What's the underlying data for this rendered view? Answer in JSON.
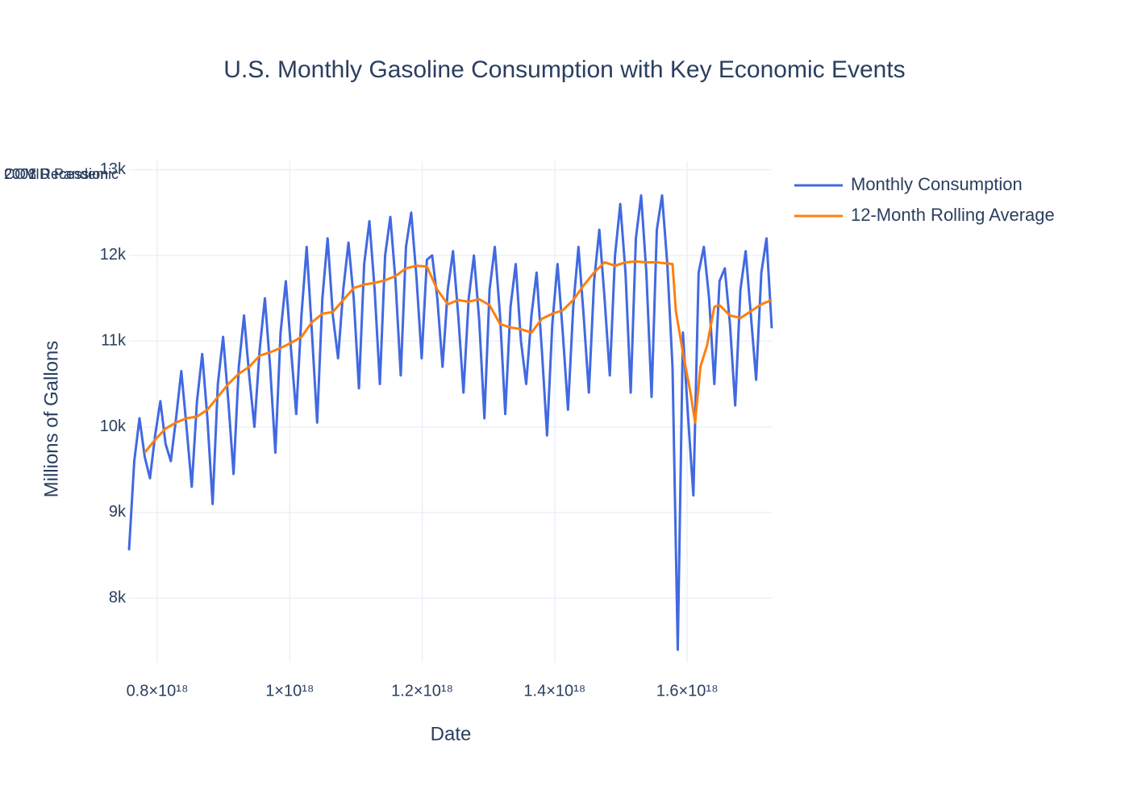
{
  "chart_data": {
    "type": "line",
    "title": "U.S. Monthly Gasoline Consumption with Key Economic Events",
    "x_label": "Date",
    "y_label": "Millions of Gallons",
    "annotations": [
      "2001 Recession",
      "2008 Recession",
      "COVID Pandemic"
    ],
    "xlim": [
      7.574e+17,
      1.7277e+18
    ],
    "ylim": [
      7250,
      13100
    ],
    "xticks": [
      {
        "value": 8e+17,
        "label": "0.8×10¹⁸"
      },
      {
        "value": 1e+18,
        "label": "1×10¹⁸"
      },
      {
        "value": 1.2e+18,
        "label": "1.2×10¹⁸"
      },
      {
        "value": 1.4e+18,
        "label": "1.4×10¹⁸"
      },
      {
        "value": 1.6e+18,
        "label": "1.6×10¹⁸"
      }
    ],
    "yticks": [
      {
        "value": 8000,
        "label": "8k"
      },
      {
        "value": 9000,
        "label": "9k"
      },
      {
        "value": 10000,
        "label": "10k"
      },
      {
        "value": 11000,
        "label": "11k"
      },
      {
        "value": 12000,
        "label": "12k"
      },
      {
        "value": 13000,
        "label": "13k"
      }
    ],
    "grid": true,
    "legend_position": "right",
    "series": [
      {
        "name": "Monthly Consumption",
        "color": "#4169e1",
        "x": [
          7.574e+17,
          7.653e+17,
          7.732e+17,
          7.811e+17,
          7.89e+17,
          7.968e+17,
          8.047e+17,
          8.126e+17,
          8.205e+17,
          8.284e+17,
          8.363e+17,
          8.442e+17,
          8.521e+17,
          8.6e+17,
          8.679e+17,
          8.757e+17,
          8.836e+17,
          8.915e+17,
          8.994e+17,
          9.073e+17,
          9.152e+17,
          9.231e+17,
          9.31e+17,
          9.388e+17,
          9.467e+17,
          9.546e+17,
          9.625e+17,
          9.704e+17,
          9.783e+17,
          9.862e+17,
          9.941e+17,
          1.002e+18,
          1.0098e+18,
          1.0177e+18,
          1.0256e+18,
          1.0335e+18,
          1.0414e+18,
          1.0493e+18,
          1.0572e+18,
          1.0651e+18,
          1.073e+18,
          1.0808e+18,
          1.0887e+18,
          1.0966e+18,
          1.1045e+18,
          1.1124e+18,
          1.1203e+18,
          1.1282e+18,
          1.1361e+18,
          1.144e+18,
          1.1519e+18,
          1.1597e+18,
          1.1676e+18,
          1.1755e+18,
          1.1834e+18,
          1.1913e+18,
          1.1992e+18,
          1.2071e+18,
          1.215e+18,
          1.2228e+18,
          1.2307e+18,
          1.2386e+18,
          1.2465e+18,
          1.2544e+18,
          1.2623e+18,
          1.2702e+18,
          1.2781e+18,
          1.286e+18,
          1.2939e+18,
          1.3017e+18,
          1.3096e+18,
          1.3175e+18,
          1.3254e+18,
          1.3333e+18,
          1.3412e+18,
          1.3491e+18,
          1.357e+18,
          1.3649e+18,
          1.3727e+18,
          1.3806e+18,
          1.3885e+18,
          1.3964e+18,
          1.4043e+18,
          1.4122e+18,
          1.4201e+18,
          1.428e+18,
          1.4359e+18,
          1.4437e+18,
          1.4516e+18,
          1.4595e+18,
          1.4674e+18,
          1.4753e+18,
          1.4832e+18,
          1.4911e+18,
          1.499e+18,
          1.5069e+18,
          1.5148e+18,
          1.5226e+18,
          1.5305e+18,
          1.5384e+18,
          1.5463e+18,
          1.5542e+18,
          1.5621e+18,
          1.57e+18,
          1.5779e+18,
          1.5858e+18,
          1.5936e+18,
          1.6015e+18,
          1.6094e+18,
          1.6173e+18,
          1.6252e+18,
          1.6331e+18,
          1.641e+18,
          1.6489e+18,
          1.6568e+18,
          1.6646e+18,
          1.6725e+18,
          1.6804e+18,
          1.6883e+18,
          1.6962e+18,
          1.7041e+18,
          1.712e+18,
          1.7198e+18,
          1.7277e+18
        ],
        "values": [
          8560,
          9600,
          10100,
          9650,
          9400,
          9900,
          10300,
          9800,
          9600,
          10100,
          10650,
          10000,
          9300,
          10300,
          10850,
          10100,
          9100,
          10500,
          11050,
          10300,
          9450,
          10700,
          11300,
          10600,
          10000,
          10900,
          11500,
          10700,
          9700,
          11100,
          11700,
          10900,
          10150,
          11300,
          12100,
          11100,
          10050,
          11500,
          12200,
          11300,
          10800,
          11600,
          12150,
          11500,
          10450,
          11900,
          12400,
          11600,
          10500,
          12000,
          12450,
          11700,
          10600,
          12100,
          12500,
          11750,
          10800,
          11950,
          12000,
          11500,
          10700,
          11600,
          12050,
          11300,
          10400,
          11500,
          12000,
          11250,
          10100,
          11600,
          12100,
          11300,
          10150,
          11400,
          11900,
          11000,
          10500,
          11300,
          11800,
          10900,
          9900,
          11200,
          11900,
          11100,
          10200,
          11400,
          12100,
          11300,
          10400,
          11700,
          12300,
          11500,
          10600,
          12000,
          12600,
          11800,
          10400,
          12200,
          12700,
          11800,
          10350,
          12300,
          12700,
          11900,
          10700,
          7400,
          11100,
          10100,
          9200,
          11800,
          12100,
          11500,
          10500,
          11700,
          11850,
          11200,
          10250,
          11600,
          12050,
          11300,
          10550,
          11800,
          12200,
          11150
        ]
      },
      {
        "name": "12-Month Rolling Average",
        "color": "#ff7f0e",
        "x": [
          7.811e+17,
          7.968e+17,
          8.126e+17,
          8.284e+17,
          8.442e+17,
          8.6e+17,
          8.757e+17,
          8.915e+17,
          9.073e+17,
          9.231e+17,
          9.388e+17,
          9.546e+17,
          9.704e+17,
          9.862e+17,
          1.002e+18,
          1.0177e+18,
          1.0335e+18,
          1.0493e+18,
          1.0651e+18,
          1.0808e+18,
          1.0966e+18,
          1.1124e+18,
          1.1282e+18,
          1.144e+18,
          1.1597e+18,
          1.1755e+18,
          1.1913e+18,
          1.2071e+18,
          1.2228e+18,
          1.2386e+18,
          1.2544e+18,
          1.2702e+18,
          1.286e+18,
          1.3017e+18,
          1.3175e+18,
          1.3333e+18,
          1.3491e+18,
          1.3649e+18,
          1.3806e+18,
          1.3964e+18,
          1.4122e+18,
          1.428e+18,
          1.4437e+18,
          1.4595e+18,
          1.4753e+18,
          1.4911e+18,
          1.5069e+18,
          1.5226e+18,
          1.5384e+18,
          1.5542e+18,
          1.5779e+18,
          1.583e+18,
          1.595e+18,
          1.605e+18,
          1.612e+18,
          1.62e+18,
          1.63e+18,
          1.641e+18,
          1.6489e+18,
          1.6646e+18,
          1.6804e+18,
          1.6962e+18,
          1.712e+18,
          1.7277e+18
        ],
        "values": [
          9700,
          9850,
          9980,
          10050,
          10100,
          10120,
          10200,
          10350,
          10500,
          10620,
          10700,
          10830,
          10870,
          10920,
          10980,
          11050,
          11220,
          11320,
          11340,
          11480,
          11620,
          11660,
          11680,
          11710,
          11760,
          11850,
          11880,
          11870,
          11600,
          11430,
          11480,
          11460,
          11490,
          11420,
          11200,
          11160,
          11140,
          11100,
          11260,
          11320,
          11360,
          11480,
          11650,
          11800,
          11920,
          11880,
          11920,
          11930,
          11920,
          11920,
          11900,
          11350,
          10800,
          10400,
          10050,
          10700,
          10950,
          11400,
          11420,
          11300,
          11270,
          11350,
          11430,
          11480
        ]
      }
    ]
  }
}
